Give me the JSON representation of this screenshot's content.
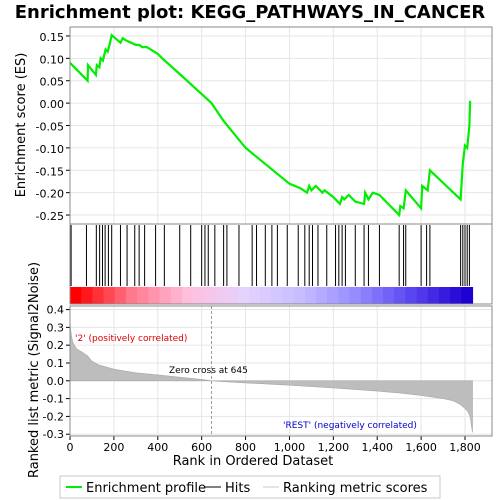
{
  "chart_data": {
    "type": "line",
    "title": "Enrichment plot: KEGG_PATHWAYS_IN_CANCER",
    "panels": {
      "enrichment": {
        "ylabel": "Enrichment score (ES)",
        "ylim": [
          -0.27,
          0.17
        ],
        "yticks": [
          -0.25,
          -0.2,
          -0.15,
          -0.1,
          -0.05,
          0.0,
          0.05,
          0.1,
          0.15
        ],
        "ytick_labels": [
          "-0.25",
          "-0.20",
          "-0.15",
          "-0.10",
          "-0.05",
          "0.00",
          "0.05",
          "0.10",
          "0.15"
        ],
        "series": [
          {
            "name": "Enrichment profile",
            "color": "#00ee00",
            "x": [
              0,
              80,
              82,
              118,
              122,
              134,
              140,
              150,
              162,
              172,
              180,
              190,
              230,
              240,
              255,
              300,
              315,
              330,
              350,
              400,
              420,
              500,
              645,
              700,
              800,
              900,
              1000,
              1050,
              1080,
              1090,
              1100,
              1120,
              1150,
              1160,
              1200,
              1230,
              1240,
              1250,
              1270,
              1300,
              1340,
              1345,
              1360,
              1380,
              1410,
              1500,
              1505,
              1520,
              1530,
              1600,
              1605,
              1630,
              1640,
              1780,
              1785,
              1790,
              1800,
              1810,
              1820,
              1823
            ],
            "y": [
              0.09,
              0.05,
              0.085,
              0.063,
              0.085,
              0.08,
              0.1,
              0.095,
              0.12,
              0.115,
              0.13,
              0.152,
              0.135,
              0.145,
              0.14,
              0.13,
              0.13,
              0.125,
              0.125,
              0.11,
              0.1,
              0.065,
              0.0,
              -0.04,
              -0.1,
              -0.14,
              -0.18,
              -0.19,
              -0.2,
              -0.185,
              -0.195,
              -0.185,
              -0.2,
              -0.195,
              -0.21,
              -0.225,
              -0.21,
              -0.215,
              -0.205,
              -0.22,
              -0.225,
              -0.2,
              -0.215,
              -0.2,
              -0.205,
              -0.25,
              -0.23,
              -0.235,
              -0.195,
              -0.235,
              -0.185,
              -0.195,
              -0.15,
              -0.215,
              -0.175,
              -0.135,
              -0.095,
              -0.1,
              -0.05,
              0.005
            ]
          }
        ]
      },
      "hits": {
        "positions": [
          5,
          75,
          120,
          135,
          148,
          160,
          175,
          190,
          230,
          260,
          295,
          315,
          340,
          390,
          430,
          500,
          550,
          600,
          615,
          630,
          660,
          700,
          715,
          770,
          830,
          850,
          890,
          920,
          945,
          990,
          1040,
          1070,
          1090,
          1105,
          1130,
          1170,
          1210,
          1225,
          1240,
          1255,
          1300,
          1340,
          1360,
          1410,
          1500,
          1520,
          1530,
          1600,
          1625,
          1640,
          1780,
          1790,
          1800,
          1810,
          1820
        ]
      },
      "ranked_metric": {
        "ylabel": "Ranked list metric (Signal2Noise)",
        "xlabel": "Rank in Ordered Dataset",
        "ylim": [
          -0.31,
          0.42
        ],
        "yticks": [
          -0.3,
          -0.2,
          -0.1,
          0.0,
          0.1,
          0.2,
          0.3,
          0.4
        ],
        "ytick_labels": [
          "-0.3",
          "-0.2",
          "-0.1",
          "0.0",
          "0.1",
          "0.2",
          "0.3",
          "0.4"
        ],
        "xlim": [
          0,
          1923
        ],
        "xticks": [
          0,
          200,
          400,
          600,
          800,
          1000,
          1200,
          1400,
          1600,
          1800
        ],
        "xtick_labels": [
          "0",
          "200",
          "400",
          "600",
          "800",
          "1,000",
          "1,200",
          "1,400",
          "1,600",
          "1,800"
        ],
        "curve": {
          "x": [
            0,
            2,
            6,
            12,
            20,
            30,
            50,
            80,
            100,
            130,
            200,
            300,
            400,
            500,
            600,
            645,
            700,
            800,
            1000,
            1200,
            1400,
            1500,
            1600,
            1700,
            1740,
            1760,
            1780,
            1800,
            1812,
            1820,
            1826,
            1830,
            1834
          ],
          "y": [
            0.35,
            0.3,
            0.26,
            0.22,
            0.2,
            0.18,
            0.165,
            0.14,
            0.11,
            0.09,
            0.065,
            0.045,
            0.033,
            0.02,
            0.008,
            0.0,
            -0.005,
            -0.012,
            -0.025,
            -0.04,
            -0.058,
            -0.068,
            -0.082,
            -0.1,
            -0.11,
            -0.12,
            -0.135,
            -0.155,
            -0.17,
            -0.19,
            -0.22,
            -0.26,
            -0.29
          ]
        },
        "zero_cross": 645,
        "annotations": {
          "pos_label": "'2' (positively correlated)",
          "neg_label": "'REST' (negatively correlated)",
          "zero_cross_label": "Zero cross at 645"
        }
      }
    },
    "n_genes": 1834,
    "legend": {
      "placement": "bottom",
      "entries": [
        "Enrichment profile",
        "Hits",
        "Ranking metric scores"
      ]
    }
  }
}
